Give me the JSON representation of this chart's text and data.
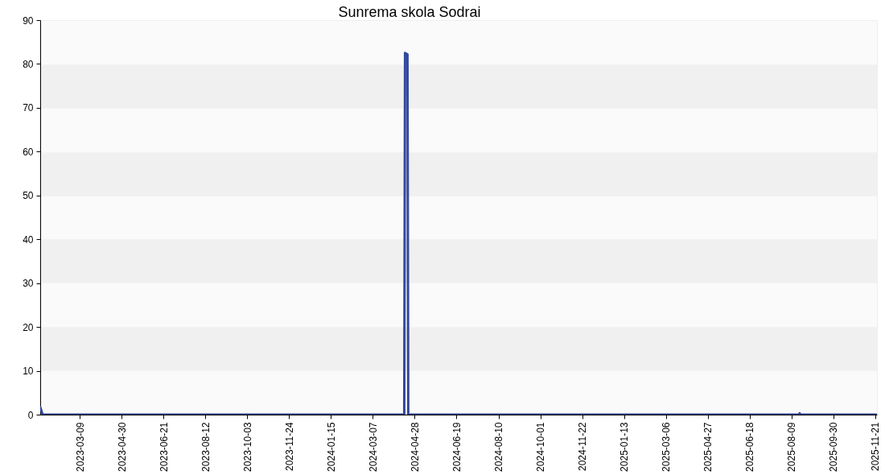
{
  "chart_data": {
    "type": "line",
    "title": "Sunrema skola Sodrai",
    "x": [
      "2023-01-19",
      "2023-01-22",
      "2024-04-15",
      "2024-04-16",
      "2024-04-19",
      "2024-04-20",
      "2025-08-18",
      "2025-08-19",
      "2025-08-20",
      "2025-11-23"
    ],
    "values": [
      1.7,
      0,
      0,
      82.5,
      82.2,
      0,
      0,
      0.3,
      0,
      0
    ],
    "color": "#34489c",
    "xlim": [
      "2023-01-19",
      "2025-11-23"
    ],
    "xticks": [
      "2023-03-09",
      "2023-04-30",
      "2023-06-21",
      "2023-08-12",
      "2023-10-03",
      "2023-11-24",
      "2024-01-15",
      "2024-03-07",
      "2024-04-28",
      "2024-06-19",
      "2024-08-10",
      "2024-10-01",
      "2024-11-22",
      "2025-01-13",
      "2025-03-06",
      "2025-04-27",
      "2025-06-18",
      "2025-08-09",
      "2025-09-30",
      "2025-11-21"
    ],
    "ylim": [
      0,
      90
    ],
    "yticks": [
      0,
      10,
      20,
      30,
      40,
      50,
      60,
      70,
      80,
      90
    ],
    "grid": "y"
  }
}
